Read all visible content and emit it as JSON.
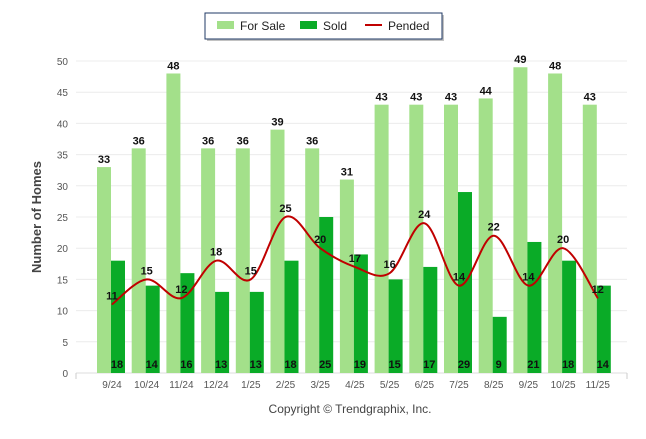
{
  "chart_data": {
    "type": "bar",
    "categories": [
      "9/24",
      "10/24",
      "11/24",
      "12/24",
      "1/25",
      "2/25",
      "3/25",
      "4/25",
      "5/25",
      "6/25",
      "7/25",
      "8/25",
      "9/25",
      "10/25",
      "11/25"
    ],
    "series": [
      {
        "name": "For Sale",
        "type": "bar",
        "color": "#a3e08a",
        "values": [
          33,
          36,
          48,
          36,
          36,
          39,
          36,
          31,
          43,
          43,
          43,
          44,
          49,
          48,
          43
        ]
      },
      {
        "name": "Sold",
        "type": "bar",
        "color": "#0aab27",
        "values": [
          18,
          14,
          16,
          13,
          13,
          18,
          25,
          19,
          15,
          17,
          29,
          9,
          21,
          18,
          14
        ]
      },
      {
        "name": "Pended",
        "type": "line",
        "color": "#c00000",
        "values": [
          11,
          15,
          12,
          18,
          15,
          25,
          20,
          17,
          16,
          24,
          14,
          22,
          14,
          20,
          12
        ]
      }
    ],
    "title": "",
    "xlabel": "",
    "ylabel": "Number of Homes",
    "ylim": [
      0,
      50
    ],
    "yticks": [
      0,
      5,
      10,
      15,
      20,
      25,
      30,
      35,
      40,
      45,
      50
    ],
    "grid": true,
    "legend": "top-center",
    "footer": "Copyright © Trendgraphix, Inc."
  }
}
